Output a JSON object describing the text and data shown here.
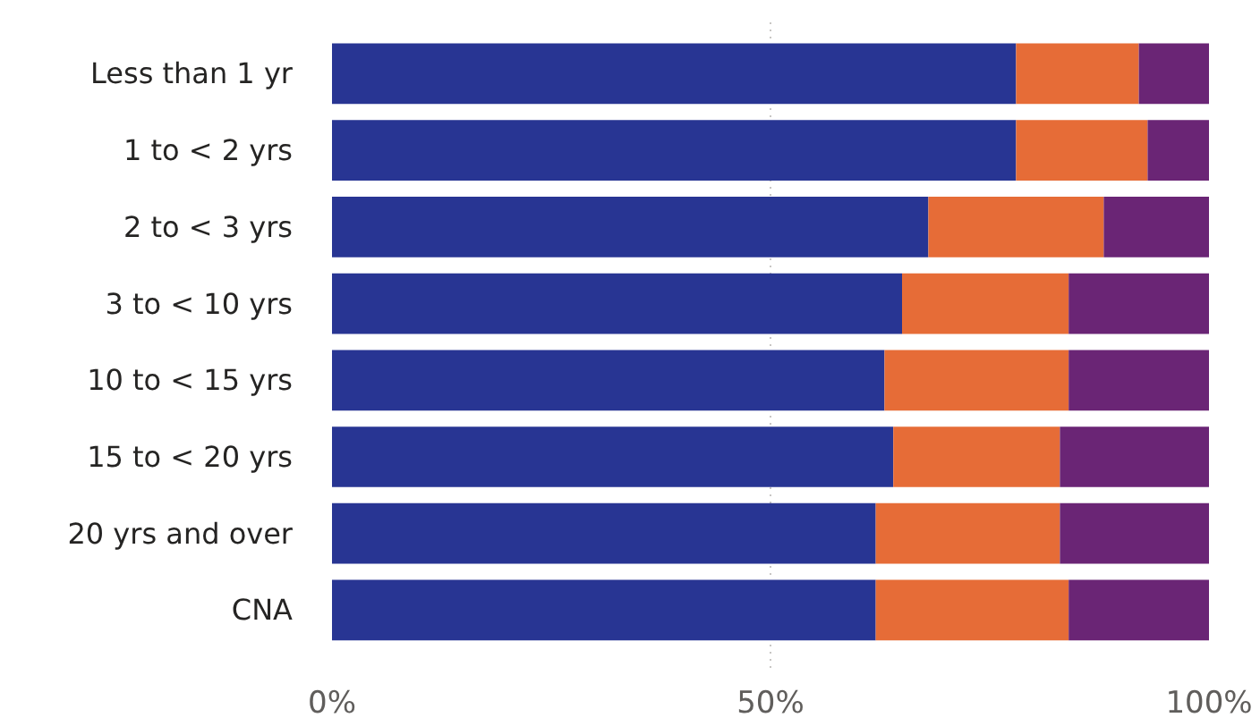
{
  "chart_data": {
    "type": "bar",
    "orientation": "horizontal",
    "stacked": true,
    "categories": [
      "Less than 1 yr",
      "1 to < 2 yrs",
      "2 to < 3 yrs",
      "3 to < 10 yrs",
      "10 to < 15 yrs",
      "15 to < 20 yrs",
      "20 yrs and over",
      "CNA"
    ],
    "series": [
      {
        "color": "#283593",
        "values": [
          78,
          78,
          68,
          65,
          63,
          64,
          62,
          62
        ]
      },
      {
        "color": "#e66c37",
        "values": [
          14,
          15,
          20,
          19,
          21,
          19,
          21,
          22
        ]
      },
      {
        "color": "#6a2575",
        "values": [
          8,
          7,
          12,
          16,
          16,
          17,
          17,
          16
        ]
      }
    ],
    "xlim": [
      0,
      100
    ],
    "xticks": [
      {
        "value": 0,
        "label": "0%"
      },
      {
        "value": 50,
        "label": "50%"
      },
      {
        "value": 100,
        "label": "100%"
      }
    ],
    "grid": "x"
  }
}
